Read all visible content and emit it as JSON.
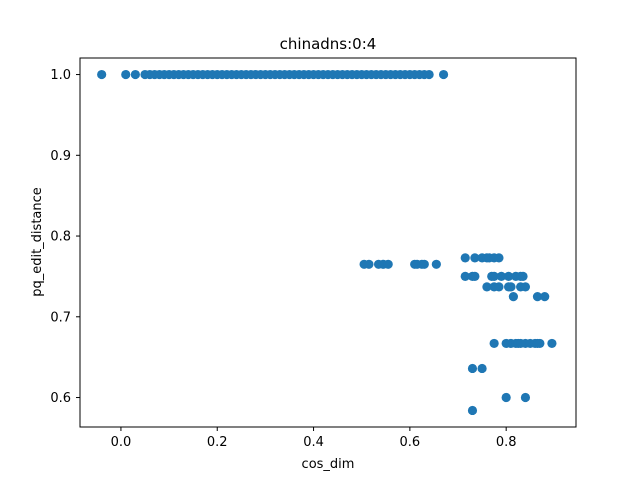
{
  "chart_data": {
    "type": "scatter",
    "title": "chinadns:0:4",
    "xlabel": "cos_dim",
    "ylabel": "pq_edit_distance",
    "xlim": [
      -0.085,
      0.945
    ],
    "ylim": [
      0.5635,
      1.0205
    ],
    "xticks": [
      0.0,
      0.2,
      0.4,
      0.6,
      0.8
    ],
    "xtick_labels": [
      "0.0",
      "0.2",
      "0.4",
      "0.6",
      "0.8"
    ],
    "yticks": [
      0.6,
      0.7,
      0.8,
      0.9,
      1.0
    ],
    "ytick_labels": [
      "0.6",
      "0.7",
      "0.8",
      "0.9",
      "1.0"
    ],
    "grid": false,
    "marker_color": "#1f77b4",
    "points": [
      [
        -0.04,
        1.0
      ],
      [
        0.01,
        1.0
      ],
      [
        0.03,
        1.0
      ],
      [
        0.05,
        1.0
      ],
      [
        0.06,
        1.0
      ],
      [
        0.07,
        1.0
      ],
      [
        0.08,
        1.0
      ],
      [
        0.09,
        1.0
      ],
      [
        0.1,
        1.0
      ],
      [
        0.11,
        1.0
      ],
      [
        0.12,
        1.0
      ],
      [
        0.13,
        1.0
      ],
      [
        0.14,
        1.0
      ],
      [
        0.15,
        1.0
      ],
      [
        0.16,
        1.0
      ],
      [
        0.17,
        1.0
      ],
      [
        0.18,
        1.0
      ],
      [
        0.19,
        1.0
      ],
      [
        0.2,
        1.0
      ],
      [
        0.21,
        1.0
      ],
      [
        0.22,
        1.0
      ],
      [
        0.23,
        1.0
      ],
      [
        0.24,
        1.0
      ],
      [
        0.25,
        1.0
      ],
      [
        0.26,
        1.0
      ],
      [
        0.27,
        1.0
      ],
      [
        0.28,
        1.0
      ],
      [
        0.29,
        1.0
      ],
      [
        0.3,
        1.0
      ],
      [
        0.31,
        1.0
      ],
      [
        0.32,
        1.0
      ],
      [
        0.33,
        1.0
      ],
      [
        0.34,
        1.0
      ],
      [
        0.35,
        1.0
      ],
      [
        0.36,
        1.0
      ],
      [
        0.37,
        1.0
      ],
      [
        0.38,
        1.0
      ],
      [
        0.39,
        1.0
      ],
      [
        0.4,
        1.0
      ],
      [
        0.41,
        1.0
      ],
      [
        0.42,
        1.0
      ],
      [
        0.43,
        1.0
      ],
      [
        0.44,
        1.0
      ],
      [
        0.45,
        1.0
      ],
      [
        0.46,
        1.0
      ],
      [
        0.47,
        1.0
      ],
      [
        0.48,
        1.0
      ],
      [
        0.49,
        1.0
      ],
      [
        0.5,
        1.0
      ],
      [
        0.51,
        1.0
      ],
      [
        0.52,
        1.0
      ],
      [
        0.53,
        1.0
      ],
      [
        0.54,
        1.0
      ],
      [
        0.55,
        1.0
      ],
      [
        0.56,
        1.0
      ],
      [
        0.57,
        1.0
      ],
      [
        0.58,
        1.0
      ],
      [
        0.59,
        1.0
      ],
      [
        0.6,
        1.0
      ],
      [
        0.61,
        1.0
      ],
      [
        0.62,
        1.0
      ],
      [
        0.63,
        1.0
      ],
      [
        0.64,
        1.0
      ],
      [
        0.67,
        1.0
      ],
      [
        0.505,
        0.765
      ],
      [
        0.515,
        0.765
      ],
      [
        0.535,
        0.765
      ],
      [
        0.545,
        0.765
      ],
      [
        0.555,
        0.765
      ],
      [
        0.61,
        0.765
      ],
      [
        0.615,
        0.765
      ],
      [
        0.625,
        0.765
      ],
      [
        0.63,
        0.765
      ],
      [
        0.655,
        0.765
      ],
      [
        0.715,
        0.773
      ],
      [
        0.735,
        0.773
      ],
      [
        0.75,
        0.773
      ],
      [
        0.76,
        0.773
      ],
      [
        0.765,
        0.773
      ],
      [
        0.775,
        0.773
      ],
      [
        0.785,
        0.773
      ],
      [
        0.715,
        0.75
      ],
      [
        0.73,
        0.75
      ],
      [
        0.735,
        0.75
      ],
      [
        0.77,
        0.75
      ],
      [
        0.775,
        0.75
      ],
      [
        0.79,
        0.75
      ],
      [
        0.805,
        0.75
      ],
      [
        0.82,
        0.75
      ],
      [
        0.83,
        0.75
      ],
      [
        0.835,
        0.75
      ],
      [
        0.76,
        0.737
      ],
      [
        0.775,
        0.737
      ],
      [
        0.785,
        0.737
      ],
      [
        0.805,
        0.737
      ],
      [
        0.81,
        0.737
      ],
      [
        0.83,
        0.737
      ],
      [
        0.84,
        0.737
      ],
      [
        0.815,
        0.725
      ],
      [
        0.865,
        0.725
      ],
      [
        0.88,
        0.725
      ],
      [
        0.775,
        0.667
      ],
      [
        0.8,
        0.667
      ],
      [
        0.81,
        0.667
      ],
      [
        0.82,
        0.667
      ],
      [
        0.825,
        0.667
      ],
      [
        0.83,
        0.667
      ],
      [
        0.84,
        0.667
      ],
      [
        0.85,
        0.667
      ],
      [
        0.86,
        0.667
      ],
      [
        0.865,
        0.667
      ],
      [
        0.87,
        0.667
      ],
      [
        0.895,
        0.667
      ],
      [
        0.73,
        0.636
      ],
      [
        0.75,
        0.636
      ],
      [
        0.8,
        0.6
      ],
      [
        0.84,
        0.6
      ],
      [
        0.73,
        0.584
      ]
    ]
  }
}
